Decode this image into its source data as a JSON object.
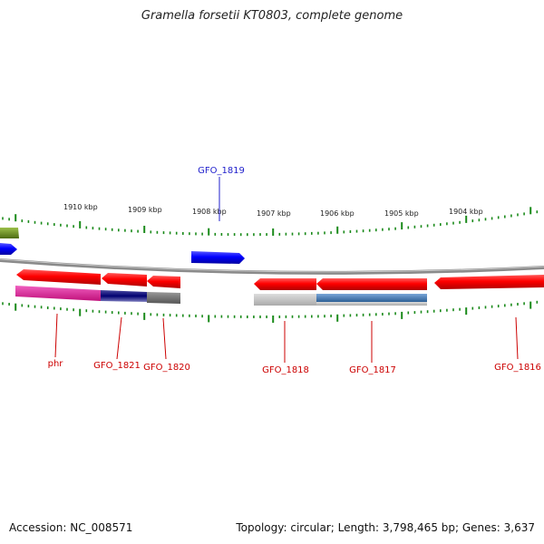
{
  "title": "Gramella forsetii KT0803, complete genome",
  "footer": {
    "accession": "Accession: NC_008571",
    "summary": "Topology: circular; Length: 3,798,465 bp; Genes: 3,637"
  },
  "scale_labels": [
    "1910 kbp",
    "1909 kbp",
    "1908 kbp",
    "1907 kbp",
    "1906 kbp",
    "1905 kbp",
    "1904 kbp"
  ],
  "genes": [
    {
      "label": "GFO_1819",
      "color": "#1f1fcc"
    },
    {
      "label": "phr",
      "color": "#cc0000"
    },
    {
      "label": "GFO_1821",
      "color": "#cc0000"
    },
    {
      "label": "GFO_1820",
      "color": "#cc0000"
    },
    {
      "label": "GFO_1818",
      "color": "#cc0000"
    },
    {
      "label": "GFO_1817",
      "color": "#cc0000"
    },
    {
      "label": "GFO_1816",
      "color": "#cc0000"
    }
  ],
  "colors": {
    "cds_forward": "#0000ff",
    "cds_reverse": "#ff0000",
    "backbone": "#8a8a8a",
    "tick": "#1a8a1a",
    "gene_product_pink": "#e0209a",
    "gene_product_navy": "#000080",
    "gene_product_gray": "#777777",
    "gene_product_lightgray": "#bbbbbb",
    "gene_product_steelblue": "#4a7fb8",
    "olive": "#6b8e23"
  }
}
